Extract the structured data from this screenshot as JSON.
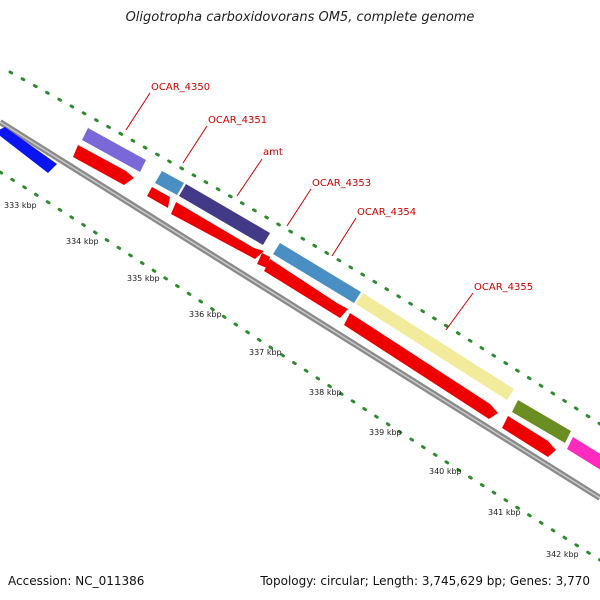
{
  "title": "Oligotropha carboxidovorans OM5, complete genome",
  "footer": {
    "accession": "Accession: NC_011386",
    "topology": "Topology: circular; Length: 3,745,629 bp; Genes: 3,770"
  },
  "colors": {
    "backbone": "#8a8a8a",
    "tick_green": "#2e8b2e",
    "label_red": "#cc0000",
    "cds_red": "#ee0000"
  },
  "gene_labels": [
    "OCAR_4350",
    "OCAR_4351",
    "amt",
    "OCAR_4353",
    "OCAR_4354",
    "OCAR_4355"
  ],
  "kbp_ticks": [
    "333 kbp",
    "334 kbp",
    "335 kbp",
    "336 kbp",
    "337 kbp",
    "338 kbp",
    "339 kbp",
    "340 kbp",
    "341 kbp",
    "342 kbp"
  ],
  "outer_features": [
    {
      "color": "#0a14ee"
    },
    {
      "color": "#7b68d8"
    },
    {
      "color": "#4a8fc4"
    },
    {
      "color": "#433a87"
    },
    {
      "color": "#4a8fc4"
    },
    {
      "color": "#f2eb9c"
    },
    {
      "color": "#6b8e23"
    },
    {
      "color": "#ff2bbf"
    }
  ]
}
